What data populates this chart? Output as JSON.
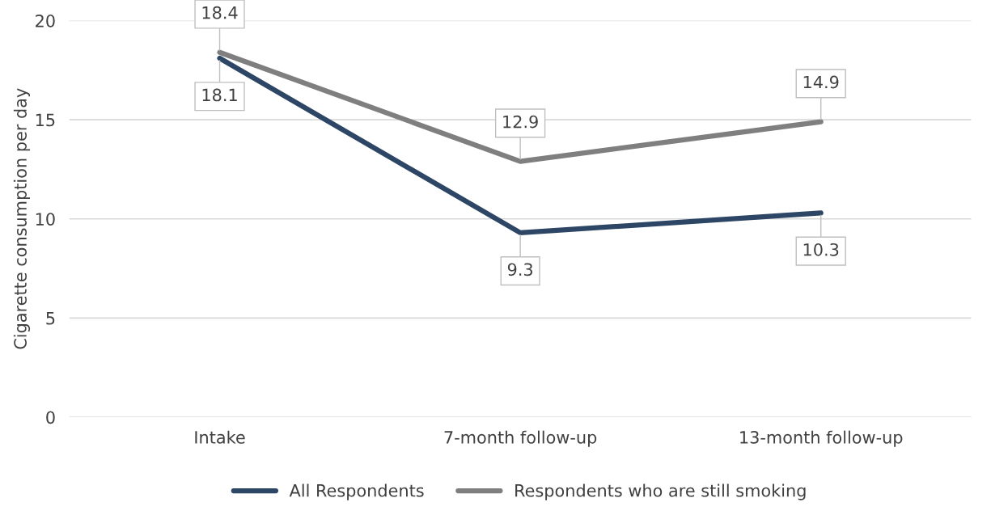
{
  "chart_data": {
    "type": "line",
    "ylabel": "Cigarette consumption per day",
    "categories": [
      "Intake",
      "7-month follow-up",
      "13-month follow-up"
    ],
    "series": [
      {
        "name": "All Respondents",
        "color": "#2e4665",
        "values": [
          18.1,
          9.3,
          10.3
        ]
      },
      {
        "name": "Respondents who are still smoking",
        "color": "#7f7f7f",
        "values": [
          18.4,
          12.9,
          14.9
        ]
      }
    ],
    "ylim": [
      0,
      20
    ],
    "yticks": [
      0,
      5,
      10,
      15,
      20
    ],
    "grid": "y",
    "legend": "bottom",
    "data_labels": true,
    "marker": "none",
    "line_style": "solid"
  }
}
